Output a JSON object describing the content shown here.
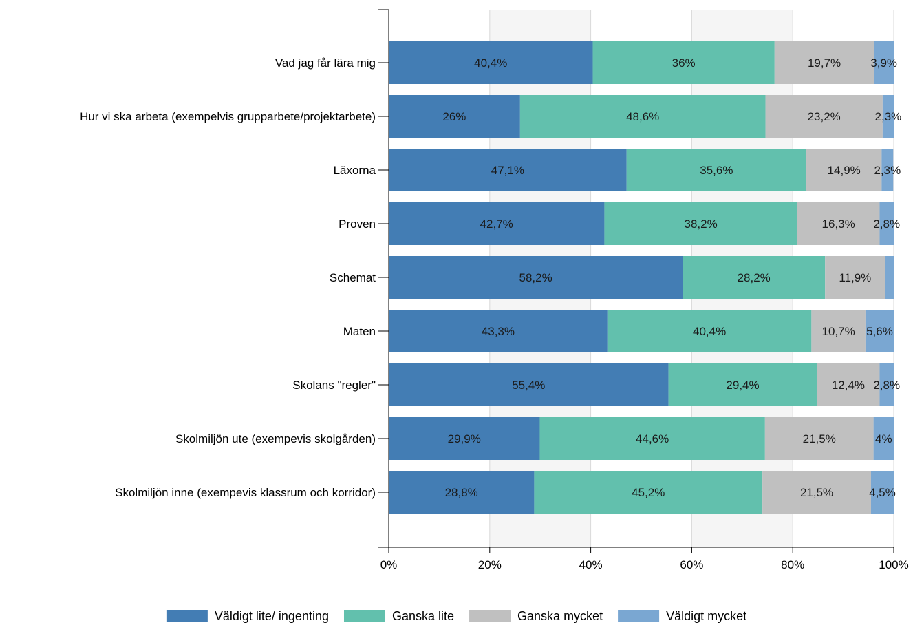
{
  "chart_data": {
    "type": "bar",
    "orientation": "horizontal",
    "stacked": "percent",
    "categories": [
      "Vad jag får lära mig",
      "Hur vi ska arbeta (exempelvis grupparbete/projektarbete)",
      "Läxorna",
      "Proven",
      "Schemat",
      "Maten",
      "Skolans \"regler\"",
      "Skolmiljön ute (exempevis skolgården)",
      "Skolmiljön inne (exempevis klassrum och korridor)"
    ],
    "series": [
      {
        "name": "Väldigt lite/ ingenting",
        "color": "#437db4",
        "values": [
          40.4,
          26,
          47.1,
          42.7,
          58.2,
          43.3,
          55.4,
          29.9,
          28.8
        ],
        "labels": [
          "40,4%",
          "26%",
          "47,1%",
          "42,7%",
          "58,2%",
          "43,3%",
          "55,4%",
          "29,9%",
          "28,8%"
        ]
      },
      {
        "name": "Ganska lite",
        "color": "#62c0ad",
        "values": [
          36,
          48.6,
          35.6,
          38.2,
          28.2,
          40.4,
          29.4,
          44.6,
          45.2
        ],
        "labels": [
          "36%",
          "48,6%",
          "35,6%",
          "38,2%",
          "28,2%",
          "40,4%",
          "29,4%",
          "44,6%",
          "45,2%"
        ]
      },
      {
        "name": "Ganska mycket",
        "color": "#c0c0c0",
        "values": [
          19.7,
          23.2,
          14.9,
          16.3,
          11.9,
          10.7,
          12.4,
          21.5,
          21.5
        ],
        "labels": [
          "19,7%",
          "23,2%",
          "14,9%",
          "16,3%",
          "11,9%",
          "10,7%",
          "12,4%",
          "21,5%",
          "21,5%"
        ]
      },
      {
        "name": "Väldigt mycket",
        "color": "#7aa7d2",
        "values": [
          3.9,
          2.3,
          2.3,
          2.8,
          1.7,
          5.6,
          2.8,
          4,
          4.5
        ],
        "labels": [
          "3,9%",
          "2,3%",
          "2,3%",
          "2,8%",
          "",
          "5,6%",
          "2,8%",
          "4%",
          "4,5%"
        ]
      }
    ],
    "x_ticks": [
      "0%",
      "20%",
      "40%",
      "60%",
      "80%",
      "100%"
    ],
    "xlim": [
      0,
      100
    ],
    "grid": true,
    "legend_position": "bottom",
    "title": "",
    "xlabel": "",
    "ylabel": ""
  }
}
